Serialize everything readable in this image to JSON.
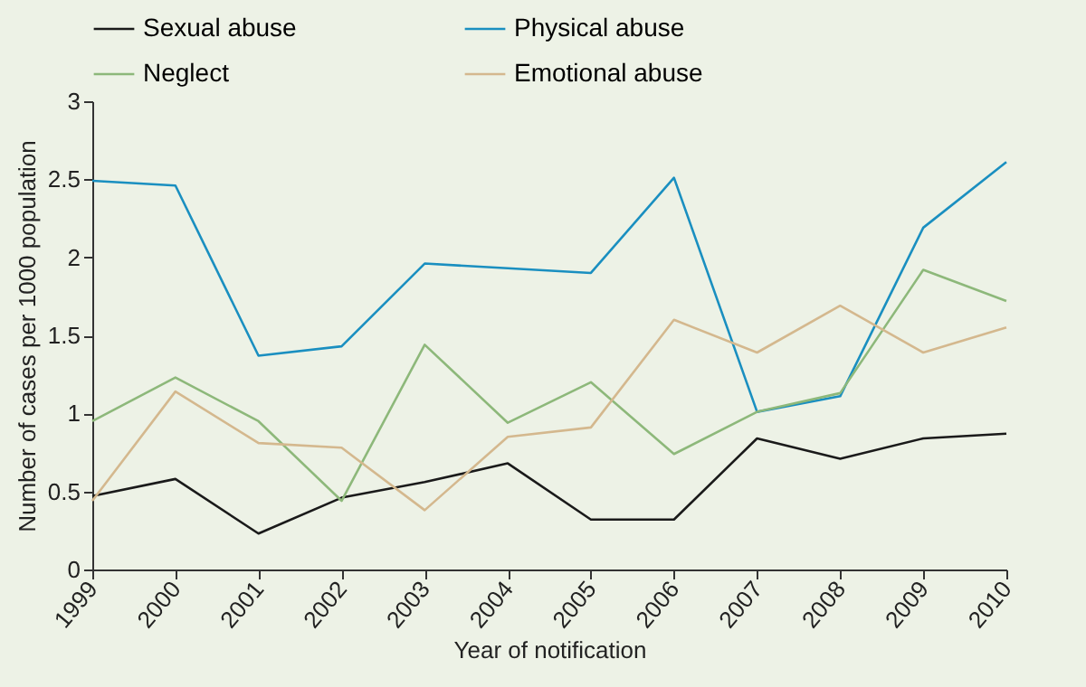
{
  "chart_data": {
    "type": "line",
    "xlabel": "Year of notification",
    "ylabel": "Number of cases per 1000 population",
    "categories": [
      "1999",
      "2000",
      "2001",
      "2002",
      "2003",
      "2004",
      "2005",
      "2006",
      "2007",
      "2008",
      "2009",
      "2010"
    ],
    "series": [
      {
        "name": "Sexual abuse",
        "color": "#1a1a1a",
        "values": [
          0.47,
          0.58,
          0.23,
          0.46,
          0.56,
          0.68,
          0.32,
          0.32,
          0.84,
          0.71,
          0.84,
          0.87
        ]
      },
      {
        "name": "Physical abuse",
        "color": "#1a8fc0",
        "values": [
          2.49,
          2.46,
          1.37,
          1.43,
          1.96,
          1.93,
          1.9,
          2.51,
          1.01,
          1.11,
          2.19,
          2.61
        ]
      },
      {
        "name": "Neglect",
        "color": "#8db87a",
        "values": [
          0.95,
          1.23,
          0.95,
          0.44,
          1.44,
          0.94,
          1.2,
          0.74,
          1.01,
          1.13,
          1.92,
          1.72
        ]
      },
      {
        "name": "Emotional abuse",
        "color": "#d4b88e",
        "values": [
          0.44,
          1.14,
          0.81,
          0.78,
          0.38,
          0.85,
          0.91,
          1.6,
          1.39,
          1.69,
          1.39,
          1.55
        ]
      }
    ],
    "ylim": [
      0,
      3
    ],
    "yticks": [
      0,
      0.5,
      1,
      1.5,
      2,
      2.5,
      3
    ],
    "grid": false,
    "legend": "top",
    "marker": "none",
    "line_style": "solid"
  }
}
